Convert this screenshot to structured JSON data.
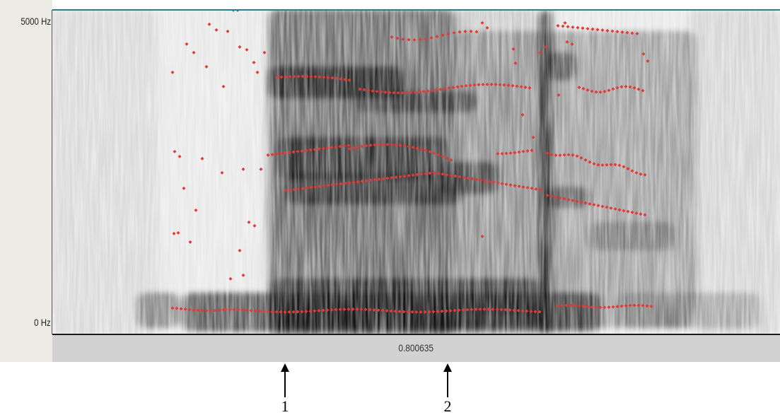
{
  "spectrogram": {
    "freq_top_label": "5000 Hz",
    "freq_bottom_label": "0 Hz",
    "time_cursor_value": "0.800635",
    "formant_color": "#e53935",
    "top_border_color": "#2d7f86"
  },
  "markers": [
    {
      "label": "1"
    },
    {
      "label": "2"
    }
  ]
}
